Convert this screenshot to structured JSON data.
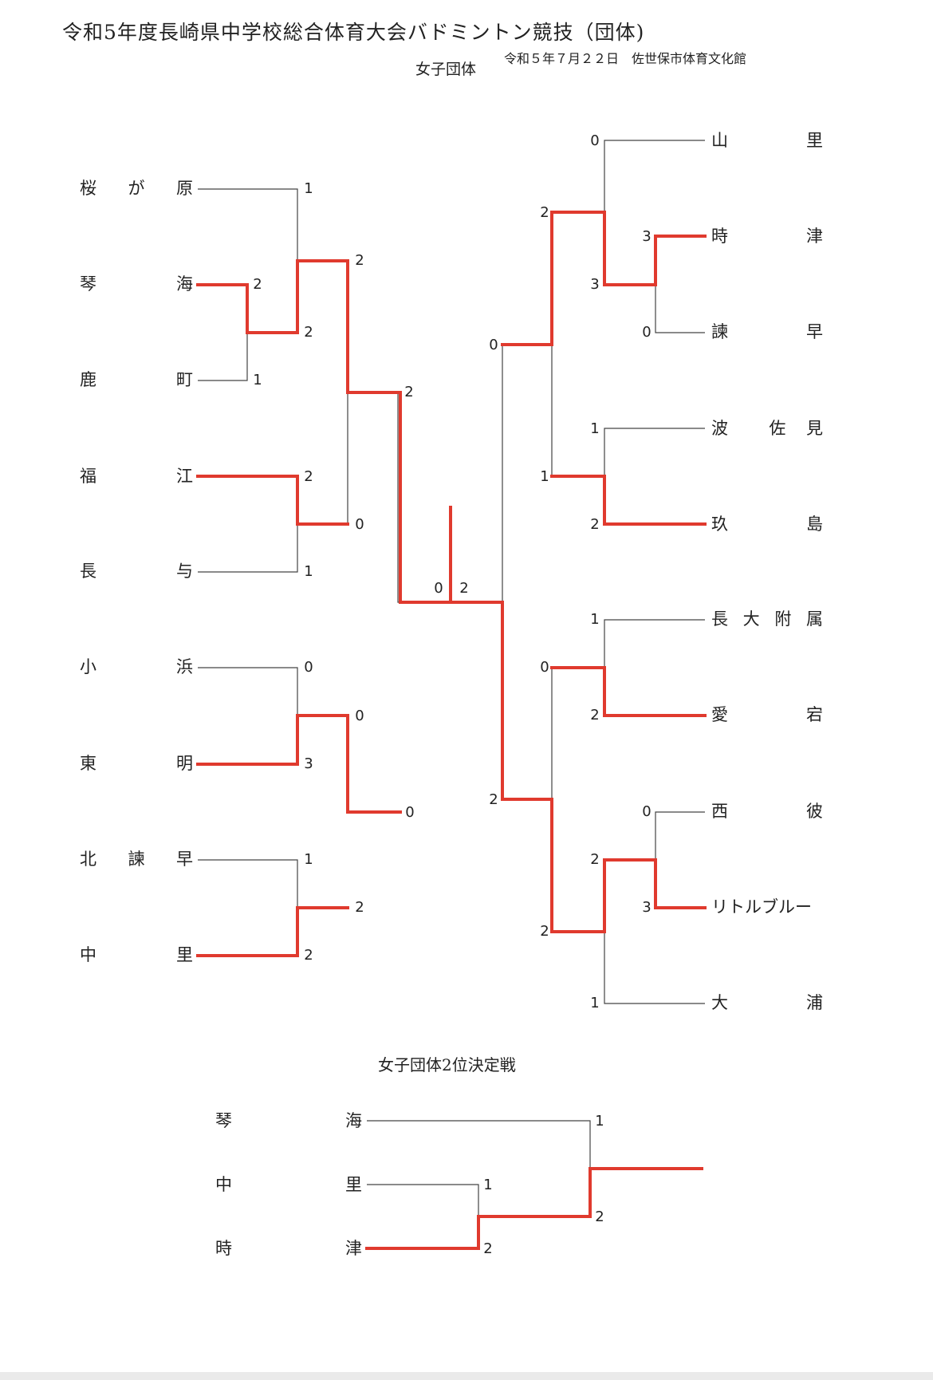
{
  "header": {
    "title": "令和5年度長崎県中学校総合体育大会バドミントン競技（団体)",
    "date_venue": "令和５年７月２２日　佐世保市体育文化館",
    "subtitle": "女子団体"
  },
  "left_teams": [
    {
      "chars": [
        "桜",
        "が",
        "原"
      ]
    },
    {
      "chars": [
        "琴",
        "",
        "海"
      ]
    },
    {
      "chars": [
        "鹿",
        "",
        "町"
      ]
    },
    {
      "chars": [
        "福",
        "",
        "江"
      ]
    },
    {
      "chars": [
        "長",
        "",
        "与"
      ]
    },
    {
      "chars": [
        "小",
        "",
        "浜"
      ]
    },
    {
      "chars": [
        "東",
        "",
        "明"
      ]
    },
    {
      "chars": [
        "北",
        "諫",
        "早"
      ]
    },
    {
      "chars": [
        "中",
        "",
        "里"
      ]
    }
  ],
  "right_teams": [
    {
      "chars": [
        "山",
        "",
        "",
        "里"
      ]
    },
    {
      "chars": [
        "時",
        "",
        "",
        "津"
      ]
    },
    {
      "chars": [
        "諫",
        "",
        "",
        "早"
      ]
    },
    {
      "chars": [
        "波",
        "",
        "佐",
        "見"
      ]
    },
    {
      "chars": [
        "玖",
        "",
        "",
        "島"
      ]
    },
    {
      "chars": [
        "長",
        "大",
        "附",
        "属"
      ]
    },
    {
      "chars": [
        "愛",
        "",
        "",
        "宕"
      ]
    },
    {
      "chars": [
        "西",
        "",
        "",
        "彼"
      ]
    },
    {
      "chars": [
        "リトルブルー"
      ]
    },
    {
      "chars": [
        "大",
        "",
        "",
        "浦"
      ]
    }
  ],
  "scores": {
    "l_sakuragahara": "1",
    "l_kinkai_r1": "2",
    "l_shikamachi": "1",
    "l_kinkai_qf": "2",
    "l_kinkai_sf": "2",
    "l_fukue": "2",
    "l_nagayo": "1",
    "l_fukue_sf": "0",
    "l_left_top_final": "2",
    "l_obama": "0",
    "l_tomei": "3",
    "l_tomei_sf": "0",
    "l_kitaisahaya": "1",
    "l_nakasato": "2",
    "l_nakasato_sf": "2",
    "l_left_bottom_final": "0",
    "final_left": "0",
    "final_right": "2",
    "r_yamasato": "0",
    "r_tokitsu": "3",
    "r_isahaya": "0",
    "r_tokitsu_qf": "3",
    "r_tokitsu_sf": "2",
    "r_hasami": "1",
    "r_kushima": "2",
    "r_kushima_sf": "1",
    "r_right_top_final": "0",
    "r_nagadai": "1",
    "r_atago": "2",
    "r_atago_sf": "0",
    "r_nishisonogi": "0",
    "r_littleblue": "3",
    "r_littleblue_qf": "2",
    "r_oura": "1",
    "r_littleblue_sf": "2",
    "r_right_bottom_final": "2"
  },
  "playoff": {
    "title": "女子団体2位決定戦",
    "teams": [
      {
        "chars": [
          "琴",
          "海"
        ]
      },
      {
        "chars": [
          "中",
          "里"
        ]
      },
      {
        "chars": [
          "時",
          "津"
        ]
      }
    ],
    "scores": {
      "kinkai": "1",
      "nakasato": "1",
      "tokitsu": "2",
      "tokitsu_final": "2"
    }
  },
  "colors": {
    "winner_line": "#e03a2e",
    "line": "#444444",
    "text": "#222222"
  }
}
